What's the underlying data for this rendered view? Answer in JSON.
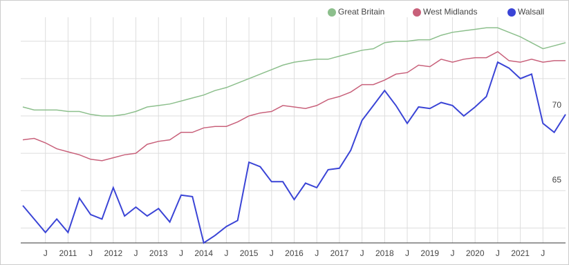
{
  "chart_data": {
    "type": "line",
    "categories": [
      null,
      null,
      "J",
      null,
      "2011",
      null,
      "J",
      null,
      "2012",
      null,
      "J",
      null,
      "2013",
      null,
      "J",
      null,
      "2014",
      null,
      "J",
      null,
      "2015",
      null,
      "J",
      null,
      "2016",
      null,
      "J",
      null,
      "2017",
      null,
      "J",
      null,
      "2018",
      null,
      "J",
      null,
      "2019",
      null,
      "J",
      null,
      "2020",
      null,
      "J",
      null,
      "2021",
      null,
      "J",
      null,
      null
    ],
    "series": [
      {
        "name": "Great Britain",
        "color": "#8cbf8c",
        "values": [
          70.6,
          70.4,
          70.4,
          70.4,
          70.3,
          70.3,
          70.1,
          70.0,
          70.0,
          70.1,
          70.3,
          70.6,
          70.7,
          70.8,
          71.0,
          71.2,
          71.4,
          71.7,
          71.9,
          72.2,
          72.5,
          72.8,
          73.1,
          73.4,
          73.6,
          73.7,
          73.8,
          73.8,
          74.0,
          74.2,
          74.4,
          74.5,
          74.9,
          75.0,
          75.0,
          75.1,
          75.1,
          75.4,
          75.6,
          75.7,
          75.8,
          75.9,
          75.9,
          75.6,
          75.3,
          74.9,
          74.5,
          74.7,
          74.9
        ]
      },
      {
        "name": "West Midlands",
        "color": "#c8607a",
        "values": [
          68.4,
          68.5,
          68.2,
          67.8,
          67.6,
          67.4,
          67.1,
          67.0,
          67.2,
          67.4,
          67.5,
          68.1,
          68.3,
          68.4,
          68.9,
          68.9,
          69.2,
          69.3,
          69.3,
          69.6,
          70.0,
          70.2,
          70.3,
          70.7,
          70.6,
          70.5,
          70.7,
          71.1,
          71.3,
          71.6,
          72.1,
          72.1,
          72.4,
          72.8,
          72.9,
          73.4,
          73.3,
          73.8,
          73.6,
          73.8,
          73.9,
          73.9,
          74.3,
          73.7,
          73.6,
          73.8,
          73.6,
          73.7,
          73.7
        ]
      },
      {
        "name": "Walsall",
        "color": "#3a44d6",
        "values": [
          64.0,
          63.1,
          62.2,
          63.1,
          62.2,
          64.5,
          63.4,
          63.1,
          65.2,
          63.3,
          63.9,
          63.3,
          63.8,
          62.9,
          64.7,
          64.6,
          61.5,
          62.0,
          62.6,
          63.0,
          66.9,
          66.6,
          65.6,
          65.6,
          64.4,
          65.5,
          65.2,
          66.4,
          66.5,
          67.7,
          69.7,
          70.7,
          71.7,
          70.7,
          69.5,
          70.6,
          70.5,
          70.9,
          70.7,
          70.0,
          70.6,
          71.3,
          73.6,
          73.2,
          72.5,
          72.8,
          69.5,
          68.9,
          70.1
        ]
      }
    ],
    "ylim": [
      61.5,
      77.3
    ],
    "yticks": [
      65,
      70
    ],
    "ygrid": [
      62.5,
      65,
      67.5,
      70,
      72.5,
      75
    ],
    "legend": "top-right"
  }
}
